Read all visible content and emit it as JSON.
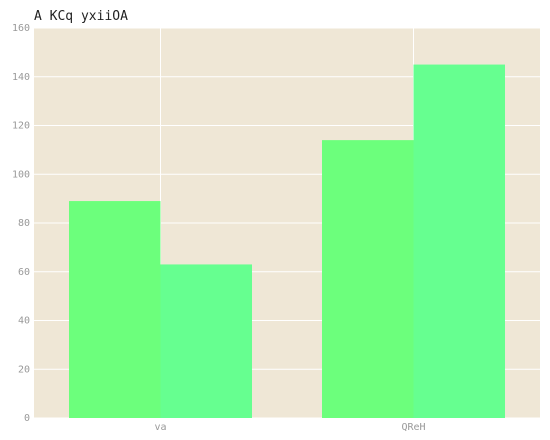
{
  "chart_data": {
    "type": "bar",
    "title": "A KCq yxiiOA",
    "xlabel": "",
    "ylabel": "",
    "categories": [
      "va",
      "QReH"
    ],
    "series": [
      {
        "values": [
          89,
          114
        ]
      },
      {
        "values": [
          63,
          145
        ]
      }
    ],
    "ylim": [
      0,
      160
    ],
    "yticks": [
      "0",
      "20",
      "40",
      "60",
      "80",
      "100",
      "120",
      "140",
      "160"
    ],
    "grid": true,
    "colors": {
      "background": "#EFE7D6",
      "grid": "#FFFFFF",
      "series": [
        "#6CFF7C",
        "#66FF90"
      ]
    }
  }
}
